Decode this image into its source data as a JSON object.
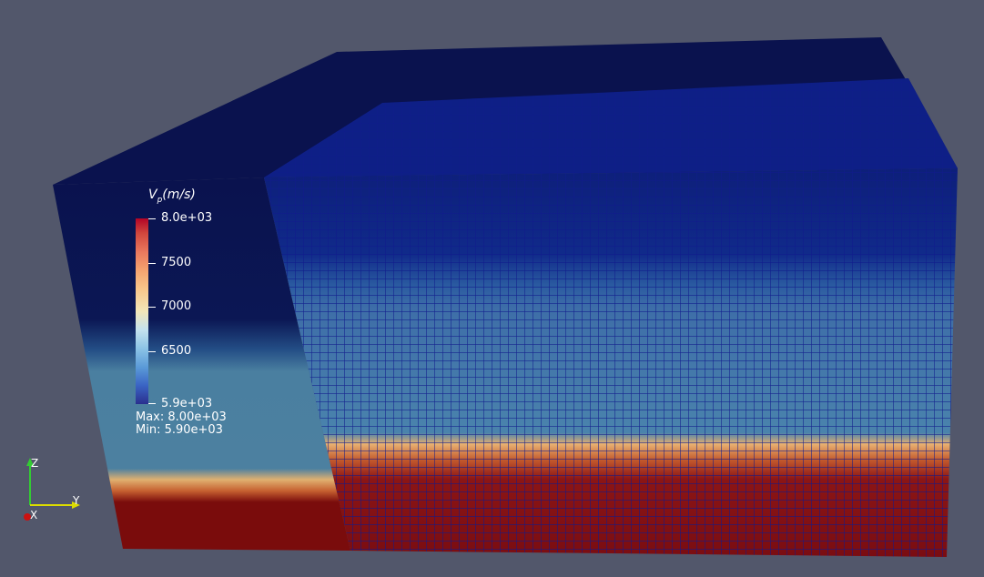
{
  "colorbar": {
    "title_var": "V",
    "title_sub": "p",
    "title_unit": "(m/s)",
    "labels": [
      "8.0e+03",
      "7500",
      "7000",
      "6500",
      "5.9e+03"
    ],
    "max_text": "Max: 8.00e+03",
    "min_text": "Min: 5.90e+03"
  },
  "axes": {
    "z_label": "Z",
    "y_label": "Y",
    "x_label": "X"
  },
  "colors": {
    "background": "#52576b",
    "top": "#0a124e",
    "deep_blue": "#0d1f7a",
    "mid_band": "#4a7fa0",
    "hot_band": "#e0a460",
    "bottom": "#7a0c0c",
    "grid": "#101a8c",
    "axis_z": "#33cc33",
    "axis_y": "#dddd00",
    "axis_x": "#cc1111"
  }
}
